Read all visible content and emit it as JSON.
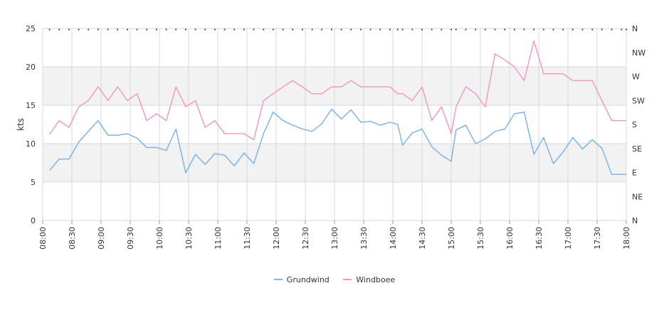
{
  "chart_data": {
    "type": "line",
    "ylabel": "kts",
    "ylim": [
      0,
      25
    ],
    "yticks": [
      0,
      5,
      10,
      15,
      20,
      25
    ],
    "right_axis_labels": [
      "N",
      "NW",
      "W",
      "SW",
      "S",
      "SE",
      "E",
      "NE",
      "N"
    ],
    "x_range": [
      "08:00",
      "18:00"
    ],
    "x_tick_labels": [
      "08:00",
      "08:30",
      "09:00",
      "09:30",
      "10:00",
      "10:30",
      "11:00",
      "11:30",
      "12:00",
      "12:30",
      "13:00",
      "13:30",
      "14:00",
      "14:30",
      "15:00",
      "15:30",
      "16:00",
      "16:30",
      "17:00",
      "17:30",
      "18:00"
    ],
    "grid_bands": [
      [
        5,
        10
      ],
      [
        15,
        20
      ]
    ],
    "legend_position": "bottom",
    "colors": {
      "Grundwind": "#7cb5ec",
      "Windboee": "#f09bc6",
      "band": "#f2f2f2",
      "grid": "#d8d8d8"
    },
    "series": [
      {
        "name": "Grundwind",
        "x": [
          "08:07",
          "08:17",
          "08:27",
          "08:37",
          "08:47",
          "08:57",
          "09:07",
          "09:17",
          "09:27",
          "09:37",
          "09:47",
          "09:57",
          "10:07",
          "10:17",
          "10:27",
          "10:37",
          "10:47",
          "10:57",
          "11:07",
          "11:17",
          "11:27",
          "11:37",
          "11:47",
          "11:57",
          "12:07",
          "12:17",
          "12:27",
          "12:37",
          "12:47",
          "12:57",
          "13:07",
          "13:17",
          "13:27",
          "13:37",
          "13:47",
          "13:57",
          "14:05",
          "14:10",
          "14:20",
          "14:30",
          "14:40",
          "14:50",
          "15:00",
          "15:05",
          "15:15",
          "15:25",
          "15:35",
          "15:45",
          "15:55",
          "16:05",
          "16:15",
          "16:25",
          "16:35",
          "16:45",
          "16:55",
          "17:05",
          "17:15",
          "17:25",
          "17:35",
          "17:45",
          "17:55",
          "18:00"
        ],
        "values": [
          6.5,
          8.0,
          8.0,
          10.2,
          11.6,
          13.0,
          11.1,
          11.1,
          11.3,
          10.7,
          9.5,
          9.5,
          9.1,
          11.9,
          6.2,
          8.6,
          7.3,
          8.7,
          8.5,
          7.1,
          8.8,
          7.4,
          11.3,
          14.1,
          13.0,
          12.4,
          11.9,
          11.6,
          12.6,
          14.5,
          13.2,
          14.4,
          12.8,
          12.9,
          12.4,
          12.8,
          12.5,
          9.8,
          11.4,
          11.9,
          9.6,
          8.5,
          7.7,
          11.8,
          12.4,
          10.0,
          10.6,
          11.6,
          11.9,
          13.9,
          14.1,
          8.6,
          10.8,
          7.4,
          8.9,
          10.8,
          9.3,
          10.5,
          9.4,
          6.0,
          6.0,
          6.0
        ]
      },
      {
        "name": "Windboee",
        "x": [
          "08:07",
          "08:17",
          "08:27",
          "08:37",
          "08:47",
          "08:57",
          "09:07",
          "09:17",
          "09:27",
          "09:37",
          "09:47",
          "09:57",
          "10:07",
          "10:17",
          "10:27",
          "10:37",
          "10:47",
          "10:57",
          "11:07",
          "11:17",
          "11:27",
          "11:37",
          "11:47",
          "11:57",
          "12:07",
          "12:17",
          "12:27",
          "12:37",
          "12:47",
          "12:57",
          "13:07",
          "13:17",
          "13:27",
          "13:37",
          "13:47",
          "13:57",
          "14:05",
          "14:10",
          "14:20",
          "14:30",
          "14:40",
          "14:50",
          "15:00",
          "15:05",
          "15:15",
          "15:25",
          "15:35",
          "15:45",
          "15:55",
          "16:05",
          "16:15",
          "16:25",
          "16:35",
          "16:45",
          "16:55",
          "17:05",
          "17:15",
          "17:25",
          "17:35",
          "17:45",
          "17:55",
          "18:00"
        ],
        "values": [
          11.2,
          13.0,
          12.1,
          14.8,
          15.6,
          17.4,
          15.6,
          17.4,
          15.6,
          16.5,
          13.0,
          13.9,
          13.0,
          17.4,
          14.8,
          15.6,
          12.1,
          13.0,
          11.3,
          11.3,
          11.3,
          10.5,
          15.6,
          16.5,
          17.4,
          18.2,
          17.4,
          16.5,
          16.5,
          17.4,
          17.4,
          18.2,
          17.4,
          17.4,
          17.4,
          17.4,
          16.5,
          16.5,
          15.6,
          17.4,
          13.0,
          14.8,
          11.3,
          14.8,
          17.4,
          16.5,
          14.8,
          21.7,
          20.9,
          20.0,
          18.2,
          23.4,
          19.1,
          19.1,
          19.1,
          18.2,
          18.2,
          18.2,
          15.6,
          13.0,
          13.0,
          13.0
        ]
      }
    ]
  }
}
